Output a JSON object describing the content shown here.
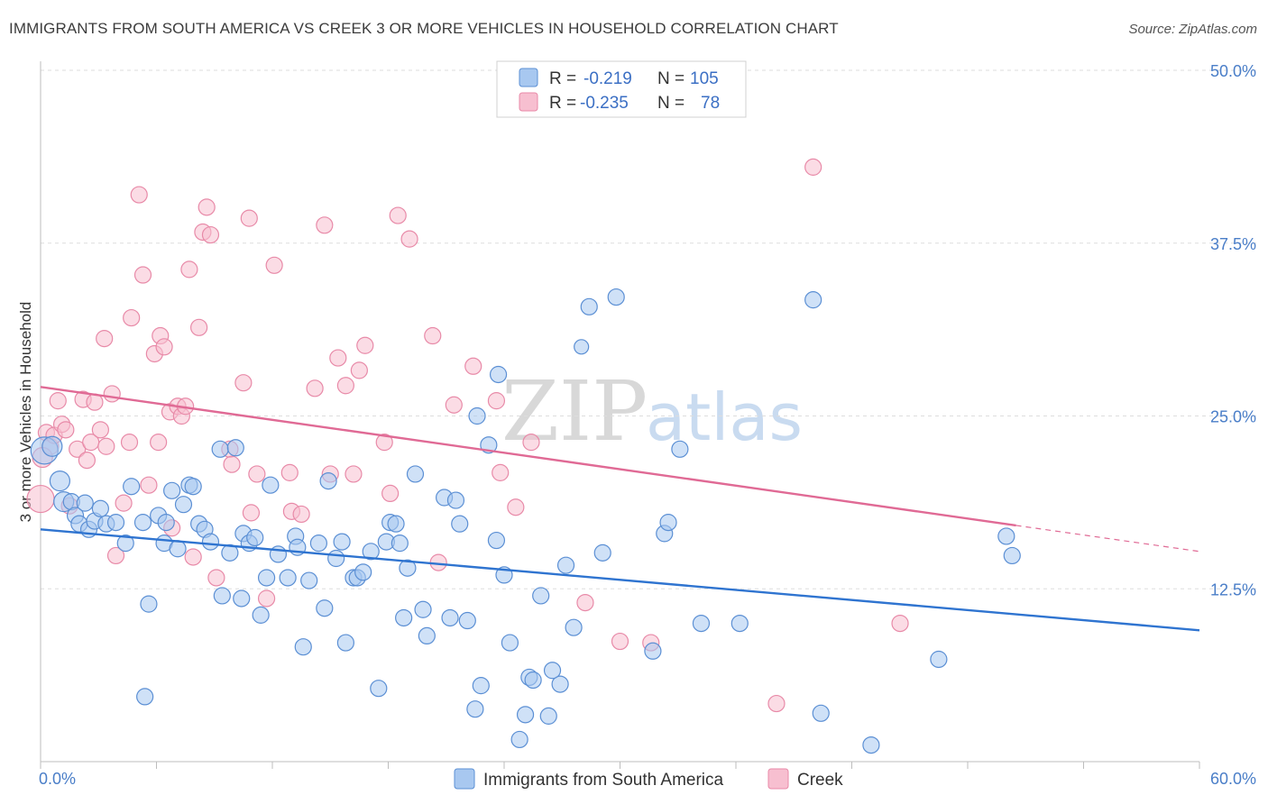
{
  "header": {
    "title": "IMMIGRANTS FROM SOUTH AMERICA VS CREEK 3 OR MORE VEHICLES IN HOUSEHOLD CORRELATION CHART",
    "source": "Source: ZipAtlas.com"
  },
  "watermark": {
    "part1": "ZIP",
    "part2": "atlas"
  },
  "colors": {
    "blue_fill": "#a8c8f0",
    "blue_stroke": "#5b8fd4",
    "blue_line": "#2f74d0",
    "pink_fill": "#f7bfd0",
    "pink_stroke": "#e88aa8",
    "pink_line": "#e06a95",
    "grid": "#dddddd",
    "tick_text": "#4a7ec8"
  },
  "legend": {
    "rows": [
      {
        "r_label": "R =",
        "r_value": "-0.219",
        "n_label": "N =",
        "n_value": "105"
      },
      {
        "r_label": "R =",
        "r_value": "-0.235",
        "n_label": "N =",
        "n_value": "78"
      }
    ]
  },
  "bottom_legend": {
    "series1": "Immigrants from South America",
    "series2": "Creek"
  },
  "chart_data": {
    "type": "scatter",
    "title": "IMMIGRANTS FROM SOUTH AMERICA VS CREEK 3 OR MORE VEHICLES IN HOUSEHOLD CORRELATION CHART",
    "xlabel": "",
    "ylabel": "3 or more Vehicles in Household",
    "xlim": [
      0,
      60
    ],
    "ylim": [
      0,
      50
    ],
    "x_tick_labels": [
      "0.0%",
      "60.0%"
    ],
    "y_ticks": [
      12.5,
      25.0,
      37.5,
      50.0
    ],
    "y_tick_labels": [
      "12.5%",
      "25.0%",
      "37.5%",
      "50.0%"
    ],
    "grid": true,
    "series": [
      {
        "name": "Immigrants from South America",
        "R": -0.219,
        "N": 105,
        "trend": {
          "x": [
            0,
            60
          ],
          "y": [
            16.8,
            9.5
          ],
          "dashed_from": null
        },
        "points": [
          [
            0.2,
            22.5,
            "L"
          ],
          [
            0.6,
            22.8,
            "M"
          ],
          [
            1.0,
            20.3,
            "M"
          ],
          [
            1.2,
            18.8,
            "M"
          ],
          [
            1.6,
            18.8
          ],
          [
            1.8,
            17.8
          ],
          [
            2.0,
            17.2
          ],
          [
            2.3,
            18.7
          ],
          [
            2.5,
            16.8
          ],
          [
            2.8,
            17.4
          ],
          [
            3.1,
            18.3
          ],
          [
            3.4,
            17.2
          ],
          [
            3.9,
            17.3
          ],
          [
            4.4,
            15.8
          ],
          [
            4.7,
            19.9
          ],
          [
            5.3,
            17.3
          ],
          [
            5.4,
            4.7
          ],
          [
            5.6,
            11.4
          ],
          [
            6.1,
            17.8
          ],
          [
            6.5,
            17.3
          ],
          [
            6.4,
            15.8
          ],
          [
            6.8,
            19.6
          ],
          [
            7.1,
            15.4
          ],
          [
            7.4,
            18.6
          ],
          [
            7.7,
            20.0
          ],
          [
            7.9,
            19.9
          ],
          [
            8.2,
            17.2
          ],
          [
            8.5,
            16.8
          ],
          [
            8.8,
            15.9
          ],
          [
            9.3,
            22.6
          ],
          [
            9.4,
            12.0
          ],
          [
            9.8,
            15.1
          ],
          [
            10.1,
            22.7
          ],
          [
            10.4,
            11.8
          ],
          [
            10.5,
            16.5
          ],
          [
            10.8,
            15.8
          ],
          [
            11.1,
            16.2
          ],
          [
            11.4,
            10.6
          ],
          [
            11.7,
            13.3
          ],
          [
            11.9,
            20.0
          ],
          [
            12.3,
            15.0
          ],
          [
            12.8,
            13.3
          ],
          [
            13.2,
            16.3
          ],
          [
            13.3,
            15.5
          ],
          [
            13.6,
            8.3
          ],
          [
            13.9,
            13.1
          ],
          [
            14.4,
            15.8
          ],
          [
            14.7,
            11.1
          ],
          [
            14.9,
            20.3
          ],
          [
            15.3,
            14.7
          ],
          [
            15.6,
            15.9
          ],
          [
            15.8,
            8.6
          ],
          [
            16.2,
            13.3
          ],
          [
            16.4,
            13.3
          ],
          [
            16.7,
            13.7
          ],
          [
            17.1,
            15.2
          ],
          [
            17.5,
            5.3
          ],
          [
            17.9,
            15.9
          ],
          [
            18.1,
            17.3
          ],
          [
            18.4,
            17.2
          ],
          [
            18.6,
            15.8
          ],
          [
            18.8,
            10.4
          ],
          [
            19.0,
            14.0
          ],
          [
            19.4,
            20.8
          ],
          [
            19.8,
            11.0
          ],
          [
            20.0,
            9.1
          ],
          [
            20.9,
            19.1
          ],
          [
            21.2,
            10.4
          ],
          [
            21.5,
            18.9
          ],
          [
            21.7,
            17.2
          ],
          [
            22.1,
            10.2
          ],
          [
            22.5,
            3.8
          ],
          [
            22.6,
            25.0
          ],
          [
            22.8,
            5.5
          ],
          [
            23.2,
            22.9
          ],
          [
            23.6,
            16.0
          ],
          [
            23.7,
            28.0
          ],
          [
            24.0,
            13.5
          ],
          [
            24.3,
            8.6
          ],
          [
            24.8,
            1.6
          ],
          [
            25.1,
            3.4
          ],
          [
            25.3,
            6.1
          ],
          [
            25.5,
            5.9
          ],
          [
            25.9,
            12.0
          ],
          [
            26.3,
            3.3
          ],
          [
            26.9,
            5.6
          ],
          [
            26.5,
            6.6
          ],
          [
            27.2,
            14.2
          ],
          [
            27.6,
            9.7
          ],
          [
            28.4,
            32.9
          ],
          [
            29.1,
            15.1
          ],
          [
            29.8,
            33.6
          ],
          [
            31.7,
            8.0
          ],
          [
            32.3,
            16.5
          ],
          [
            32.5,
            17.3
          ],
          [
            33.1,
            22.6
          ],
          [
            34.2,
            10.0
          ],
          [
            36.2,
            10.0
          ],
          [
            40.0,
            33.4
          ],
          [
            40.4,
            3.5
          ],
          [
            43.0,
            1.2
          ],
          [
            46.5,
            7.4
          ],
          [
            50.0,
            16.3
          ],
          [
            50.3,
            14.9
          ],
          [
            28.0,
            30.0,
            "S"
          ]
        ]
      },
      {
        "name": "Creek",
        "R": -0.235,
        "N": 78,
        "trend": {
          "x": [
            0,
            60
          ],
          "y": [
            27.1,
            15.2
          ],
          "dashed_from": 50.5
        },
        "points": [
          [
            0.0,
            19.0,
            "L"
          ],
          [
            0.3,
            23.8
          ],
          [
            0.5,
            22.8
          ],
          [
            0.7,
            23.6
          ],
          [
            0.9,
            26.1
          ],
          [
            1.1,
            24.4
          ],
          [
            1.3,
            24.0
          ],
          [
            1.5,
            18.5
          ],
          [
            1.9,
            22.6
          ],
          [
            2.2,
            26.2
          ],
          [
            2.4,
            21.8
          ],
          [
            2.6,
            23.1
          ],
          [
            2.8,
            26.0
          ],
          [
            3.1,
            24.0
          ],
          [
            3.3,
            30.6
          ],
          [
            3.4,
            22.8
          ],
          [
            3.7,
            26.6
          ],
          [
            3.9,
            14.9
          ],
          [
            4.3,
            18.7
          ],
          [
            4.6,
            23.1
          ],
          [
            4.7,
            32.1
          ],
          [
            5.1,
            41.0
          ],
          [
            5.3,
            35.2
          ],
          [
            5.6,
            20.0
          ],
          [
            5.9,
            29.5
          ],
          [
            6.1,
            23.1
          ],
          [
            6.2,
            30.8
          ],
          [
            6.4,
            30.0
          ],
          [
            6.7,
            25.3
          ],
          [
            6.8,
            16.9
          ],
          [
            7.1,
            25.7
          ],
          [
            7.3,
            25.0
          ],
          [
            7.5,
            25.7
          ],
          [
            7.7,
            35.6
          ],
          [
            7.9,
            14.8
          ],
          [
            8.2,
            31.4
          ],
          [
            8.4,
            38.3
          ],
          [
            8.6,
            40.1
          ],
          [
            8.8,
            38.1
          ],
          [
            9.1,
            13.3
          ],
          [
            9.8,
            22.6
          ],
          [
            9.9,
            21.5
          ],
          [
            10.5,
            27.4
          ],
          [
            10.8,
            39.3
          ],
          [
            10.9,
            18.0
          ],
          [
            11.2,
            20.8
          ],
          [
            11.7,
            11.8
          ],
          [
            12.1,
            35.9
          ],
          [
            12.9,
            20.9
          ],
          [
            13.0,
            18.1
          ],
          [
            13.5,
            17.9
          ],
          [
            14.2,
            27.0
          ],
          [
            14.7,
            38.8
          ],
          [
            15.0,
            20.8
          ],
          [
            15.4,
            29.2
          ],
          [
            15.8,
            27.2
          ],
          [
            16.2,
            20.8
          ],
          [
            16.5,
            28.3
          ],
          [
            16.8,
            30.1
          ],
          [
            17.8,
            23.1
          ],
          [
            18.1,
            19.4
          ],
          [
            18.5,
            39.5
          ],
          [
            19.1,
            37.8
          ],
          [
            20.3,
            30.8
          ],
          [
            20.6,
            14.4
          ],
          [
            21.4,
            25.8
          ],
          [
            22.4,
            28.6
          ],
          [
            23.6,
            26.1
          ],
          [
            23.8,
            20.9
          ],
          [
            24.6,
            18.4
          ],
          [
            25.4,
            23.1
          ],
          [
            28.2,
            11.5
          ],
          [
            30.0,
            8.7
          ],
          [
            31.6,
            8.6
          ],
          [
            38.1,
            4.2
          ],
          [
            40.0,
            43.0
          ],
          [
            44.5,
            10.0
          ],
          [
            0.1,
            22.0,
            "M"
          ]
        ]
      }
    ]
  }
}
